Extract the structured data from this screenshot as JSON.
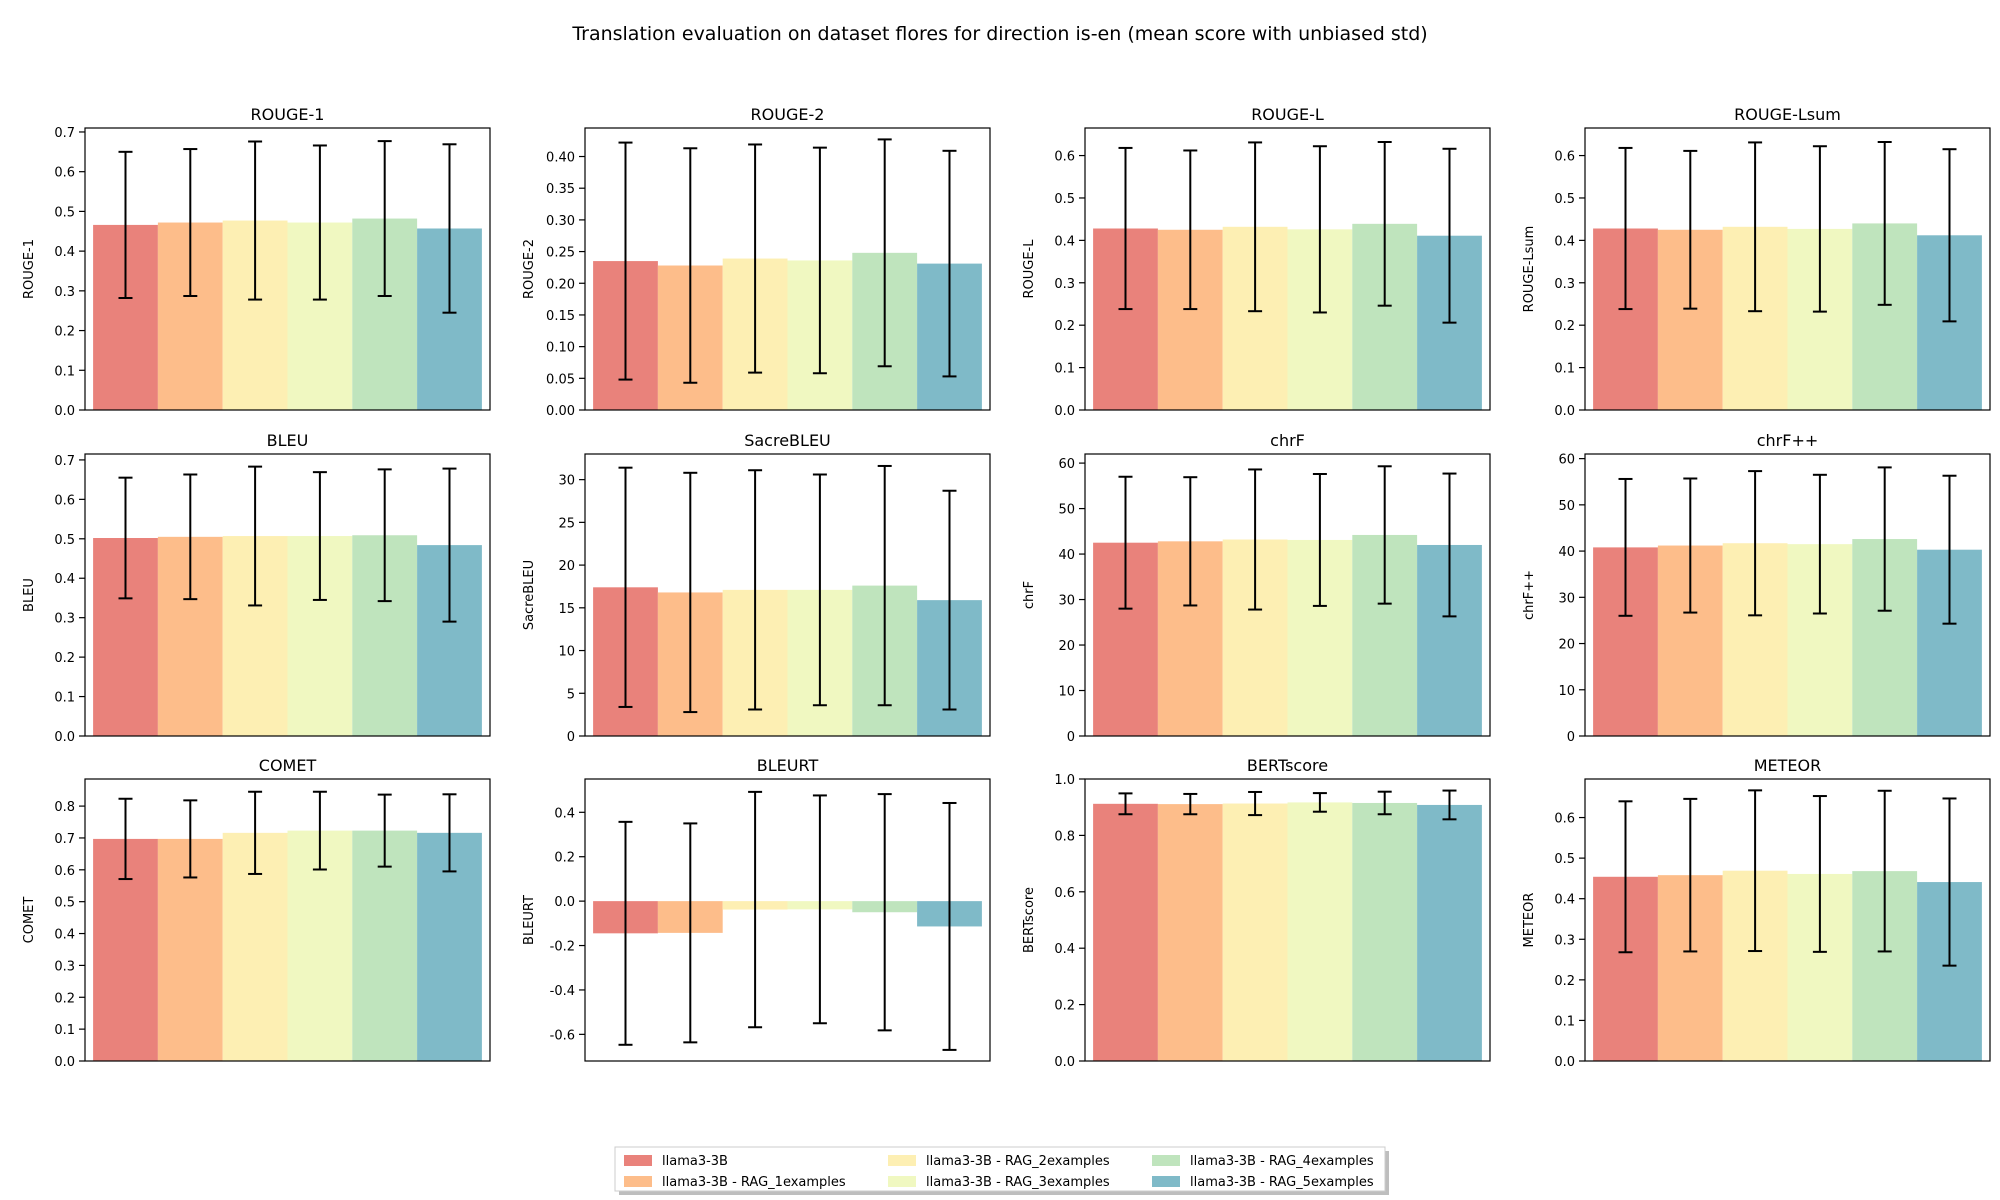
{
  "figure_title": "Translation evaluation on dataset flores for direction is-en (mean score with unbiased std)",
  "series_colors": [
    "#e9827b",
    "#fdbd8a",
    "#fdefb3",
    "#f0f8c1",
    "#bfe4bd",
    "#7fbac8"
  ],
  "legend": {
    "labels": [
      "llama3-3B",
      "llama3-3B - RAG_1examples",
      "llama3-3B - RAG_2examples",
      "llama3-3B - RAG_3examples",
      "llama3-3B - RAG_4examples",
      "llama3-3B - RAG_5examples"
    ]
  },
  "chart_data": [
    {
      "type": "bar",
      "title": "ROUGE-1",
      "ylabel": "ROUGE-1",
      "ylim": [
        0,
        0.71
      ],
      "yticks": [
        0.0,
        0.1,
        0.2,
        0.3,
        0.4,
        0.5,
        0.6,
        0.7
      ],
      "tick_decimals": 1,
      "series": [
        {
          "name": "llama3-3B",
          "value": 0.466,
          "err": 0.184
        },
        {
          "name": "llama3-3B - RAG_1examples",
          "value": 0.472,
          "err": 0.185
        },
        {
          "name": "llama3-3B - RAG_2examples",
          "value": 0.477,
          "err": 0.199
        },
        {
          "name": "llama3-3B - RAG_3examples",
          "value": 0.472,
          "err": 0.194
        },
        {
          "name": "llama3-3B - RAG_4examples",
          "value": 0.482,
          "err": 0.195
        },
        {
          "name": "llama3-3B - RAG_5examples",
          "value": 0.457,
          "err": 0.212
        }
      ]
    },
    {
      "type": "bar",
      "title": "ROUGE-2",
      "ylabel": "ROUGE-2",
      "ylim": [
        0,
        0.445
      ],
      "yticks": [
        0.0,
        0.05,
        0.1,
        0.15,
        0.2,
        0.25,
        0.3,
        0.35,
        0.4
      ],
      "tick_decimals": 2,
      "series": [
        {
          "name": "llama3-3B",
          "value": 0.235,
          "err": 0.187
        },
        {
          "name": "llama3-3B - RAG_1examples",
          "value": 0.228,
          "err": 0.185
        },
        {
          "name": "llama3-3B - RAG_2examples",
          "value": 0.239,
          "err": 0.18
        },
        {
          "name": "llama3-3B - RAG_3examples",
          "value": 0.236,
          "err": 0.178
        },
        {
          "name": "llama3-3B - RAG_4examples",
          "value": 0.248,
          "err": 0.179
        },
        {
          "name": "llama3-3B - RAG_5examples",
          "value": 0.231,
          "err": 0.178
        }
      ]
    },
    {
      "type": "bar",
      "title": "ROUGE-L",
      "ylabel": "ROUGE-L",
      "ylim": [
        0,
        0.665
      ],
      "yticks": [
        0.0,
        0.1,
        0.2,
        0.3,
        0.4,
        0.5,
        0.6
      ],
      "tick_decimals": 1,
      "series": [
        {
          "name": "llama3-3B",
          "value": 0.428,
          "err": 0.19
        },
        {
          "name": "llama3-3B - RAG_1examples",
          "value": 0.425,
          "err": 0.187
        },
        {
          "name": "llama3-3B - RAG_2examples",
          "value": 0.432,
          "err": 0.199
        },
        {
          "name": "llama3-3B - RAG_3examples",
          "value": 0.426,
          "err": 0.196
        },
        {
          "name": "llama3-3B - RAG_4examples",
          "value": 0.439,
          "err": 0.193
        },
        {
          "name": "llama3-3B - RAG_5examples",
          "value": 0.411,
          "err": 0.205
        }
      ]
    },
    {
      "type": "bar",
      "title": "ROUGE-Lsum",
      "ylabel": "ROUGE-Lsum",
      "ylim": [
        0,
        0.665
      ],
      "yticks": [
        0.0,
        0.1,
        0.2,
        0.3,
        0.4,
        0.5,
        0.6
      ],
      "tick_decimals": 1,
      "series": [
        {
          "name": "llama3-3B",
          "value": 0.428,
          "err": 0.19
        },
        {
          "name": "llama3-3B - RAG_1examples",
          "value": 0.425,
          "err": 0.186
        },
        {
          "name": "llama3-3B - RAG_2examples",
          "value": 0.432,
          "err": 0.199
        },
        {
          "name": "llama3-3B - RAG_3examples",
          "value": 0.427,
          "err": 0.195
        },
        {
          "name": "llama3-3B - RAG_4examples",
          "value": 0.44,
          "err": 0.192
        },
        {
          "name": "llama3-3B - RAG_5examples",
          "value": 0.412,
          "err": 0.203
        }
      ]
    },
    {
      "type": "bar",
      "title": "BLEU",
      "ylabel": "BLEU",
      "ylim": [
        0,
        0.715
      ],
      "yticks": [
        0.0,
        0.1,
        0.2,
        0.3,
        0.4,
        0.5,
        0.6,
        0.7
      ],
      "tick_decimals": 1,
      "series": [
        {
          "name": "llama3-3B",
          "value": 0.502,
          "err": 0.153
        },
        {
          "name": "llama3-3B - RAG_1examples",
          "value": 0.505,
          "err": 0.158
        },
        {
          "name": "llama3-3B - RAG_2examples",
          "value": 0.507,
          "err": 0.176
        },
        {
          "name": "llama3-3B - RAG_3examples",
          "value": 0.507,
          "err": 0.162
        },
        {
          "name": "llama3-3B - RAG_4examples",
          "value": 0.509,
          "err": 0.167
        },
        {
          "name": "llama3-3B - RAG_5examples",
          "value": 0.484,
          "err": 0.194
        }
      ]
    },
    {
      "type": "bar",
      "title": "SacreBLEU",
      "ylabel": "SacreBLEU",
      "ylim": [
        0,
        33
      ],
      "yticks": [
        0,
        5,
        10,
        15,
        20,
        25,
        30
      ],
      "tick_decimals": 0,
      "series": [
        {
          "name": "llama3-3B",
          "value": 17.4,
          "err": 14.0
        },
        {
          "name": "llama3-3B - RAG_1examples",
          "value": 16.8,
          "err": 14.0
        },
        {
          "name": "llama3-3B - RAG_2examples",
          "value": 17.1,
          "err": 14.0
        },
        {
          "name": "llama3-3B - RAG_3examples",
          "value": 17.1,
          "err": 13.5
        },
        {
          "name": "llama3-3B - RAG_4examples",
          "value": 17.6,
          "err": 14.0
        },
        {
          "name": "llama3-3B - RAG_5examples",
          "value": 15.9,
          "err": 12.8
        }
      ]
    },
    {
      "type": "bar",
      "title": "chrF",
      "ylabel": "chrF",
      "ylim": [
        0,
        62
      ],
      "yticks": [
        0,
        10,
        20,
        30,
        40,
        50,
        60
      ],
      "tick_decimals": 0,
      "series": [
        {
          "name": "llama3-3B",
          "value": 42.5,
          "err": 14.5
        },
        {
          "name": "llama3-3B - RAG_1examples",
          "value": 42.8,
          "err": 14.1
        },
        {
          "name": "llama3-3B - RAG_2examples",
          "value": 43.2,
          "err": 15.4
        },
        {
          "name": "llama3-3B - RAG_3examples",
          "value": 43.1,
          "err": 14.5
        },
        {
          "name": "llama3-3B - RAG_4examples",
          "value": 44.2,
          "err": 15.1
        },
        {
          "name": "llama3-3B - RAG_5examples",
          "value": 42.0,
          "err": 15.7
        }
      ]
    },
    {
      "type": "bar",
      "title": "chrF++",
      "ylabel": "chrF++",
      "ylim": [
        0,
        61
      ],
      "yticks": [
        0,
        10,
        20,
        30,
        40,
        50,
        60
      ],
      "tick_decimals": 0,
      "series": [
        {
          "name": "llama3-3B",
          "value": 40.8,
          "err": 14.8
        },
        {
          "name": "llama3-3B - RAG_1examples",
          "value": 41.2,
          "err": 14.5
        },
        {
          "name": "llama3-3B - RAG_2examples",
          "value": 41.7,
          "err": 15.6
        },
        {
          "name": "llama3-3B - RAG_3examples",
          "value": 41.5,
          "err": 15.0
        },
        {
          "name": "llama3-3B - RAG_4examples",
          "value": 42.6,
          "err": 15.5
        },
        {
          "name": "llama3-3B - RAG_5examples",
          "value": 40.3,
          "err": 16.0
        }
      ]
    },
    {
      "type": "bar",
      "title": "COMET",
      "ylabel": "COMET",
      "ylim": [
        0,
        0.885
      ],
      "yticks": [
        0.0,
        0.1,
        0.2,
        0.3,
        0.4,
        0.5,
        0.6,
        0.7,
        0.8
      ],
      "tick_decimals": 1,
      "series": [
        {
          "name": "llama3-3B",
          "value": 0.697,
          "err": 0.126
        },
        {
          "name": "llama3-3B - RAG_1examples",
          "value": 0.697,
          "err": 0.121
        },
        {
          "name": "llama3-3B - RAG_2examples",
          "value": 0.716,
          "err": 0.129
        },
        {
          "name": "llama3-3B - RAG_3examples",
          "value": 0.723,
          "err": 0.122
        },
        {
          "name": "llama3-3B - RAG_4examples",
          "value": 0.723,
          "err": 0.113
        },
        {
          "name": "llama3-3B - RAG_5examples",
          "value": 0.716,
          "err": 0.121
        }
      ]
    },
    {
      "type": "bar",
      "title": "BLEURT",
      "ylabel": "BLEURT",
      "ylim": [
        -0.72,
        0.55
      ],
      "yticks": [
        -0.6,
        -0.4,
        -0.2,
        0.0,
        0.2,
        0.4
      ],
      "tick_decimals": 1,
      "series": [
        {
          "name": "llama3-3B",
          "value": -0.145,
          "err": 0.502
        },
        {
          "name": "llama3-3B - RAG_1examples",
          "value": -0.143,
          "err": 0.493
        },
        {
          "name": "llama3-3B - RAG_2examples",
          "value": -0.038,
          "err": 0.53
        },
        {
          "name": "llama3-3B - RAG_3examples",
          "value": -0.037,
          "err": 0.513
        },
        {
          "name": "llama3-3B - RAG_4examples",
          "value": -0.05,
          "err": 0.532
        },
        {
          "name": "llama3-3B - RAG_5examples",
          "value": -0.114,
          "err": 0.556
        }
      ]
    },
    {
      "type": "bar",
      "title": "BERTscore",
      "ylabel": "BERTscore",
      "ylim": [
        0,
        1.0
      ],
      "yticks": [
        0.0,
        0.2,
        0.4,
        0.6,
        0.8,
        1.0
      ],
      "tick_decimals": 1,
      "series": [
        {
          "name": "llama3-3B",
          "value": 0.912,
          "err": 0.037
        },
        {
          "name": "llama3-3B - RAG_1examples",
          "value": 0.911,
          "err": 0.036
        },
        {
          "name": "llama3-3B - RAG_2examples",
          "value": 0.913,
          "err": 0.041
        },
        {
          "name": "llama3-3B - RAG_3examples",
          "value": 0.917,
          "err": 0.033
        },
        {
          "name": "llama3-3B - RAG_4examples",
          "value": 0.915,
          "err": 0.04
        },
        {
          "name": "llama3-3B - RAG_5examples",
          "value": 0.908,
          "err": 0.051
        }
      ]
    },
    {
      "type": "bar",
      "title": "METEOR",
      "ylabel": "METEOR",
      "ylim": [
        0,
        0.695
      ],
      "yticks": [
        0.0,
        0.1,
        0.2,
        0.3,
        0.4,
        0.5,
        0.6
      ],
      "tick_decimals": 1,
      "series": [
        {
          "name": "llama3-3B",
          "value": 0.454,
          "err": 0.186
        },
        {
          "name": "llama3-3B - RAG_1examples",
          "value": 0.458,
          "err": 0.188
        },
        {
          "name": "llama3-3B - RAG_2examples",
          "value": 0.469,
          "err": 0.198
        },
        {
          "name": "llama3-3B - RAG_3examples",
          "value": 0.461,
          "err": 0.192
        },
        {
          "name": "llama3-3B - RAG_4examples",
          "value": 0.468,
          "err": 0.198
        },
        {
          "name": "llama3-3B - RAG_5examples",
          "value": 0.441,
          "err": 0.206
        }
      ]
    }
  ]
}
